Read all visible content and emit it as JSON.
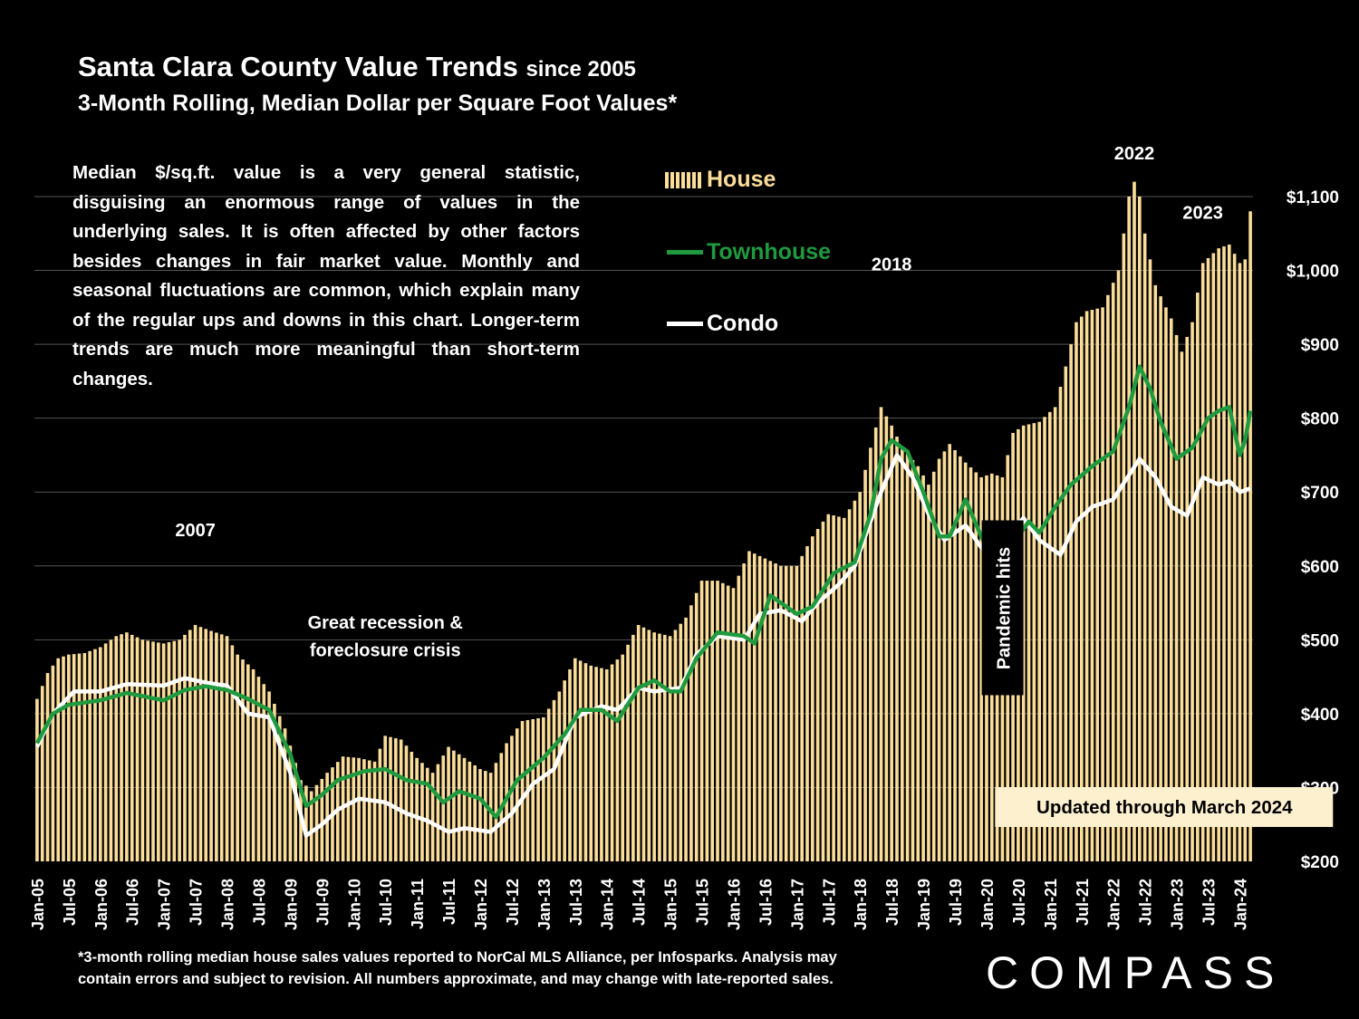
{
  "header": {
    "title": "Santa Clara County Value Trends",
    "title_suffix": "since 2005",
    "subtitle": "3-Month Rolling, Median Dollar per Square Foot Values*"
  },
  "note": "Median $/sq.ft. value is a very general statistic, disguising an enormous range of values in the underlying sales. It is often affected by other factors besides changes in fair market value. Monthly and seasonal fluctuations are common, which explain many of the regular ups and downs in this chart. Longer-term trends are much more meaningful than short-term changes.",
  "footnote": {
    "line1": "*3-month rolling median house sales values reported to NorCal MLS Alliance, per Infosparks. Analysis may",
    "line2": "contain errors and subject to revision. All numbers approximate, and may change with late-reported sales."
  },
  "logo": "COMPASS",
  "colors": {
    "house": "#fbdd9a",
    "townhouse": "#1f9a3f",
    "condo": "#ffffff",
    "background": "#000000",
    "grid": "#555555"
  },
  "chart_data": {
    "type": "bar",
    "ylim": [
      200,
      1150
    ],
    "y_ticks": [
      "$200",
      "$300",
      "$400",
      "$500",
      "$600",
      "$700",
      "$800",
      "$900",
      "$1,000",
      "$1,100"
    ],
    "y_tick_values": [
      200,
      300,
      400,
      500,
      600,
      700,
      800,
      900,
      1000,
      1100
    ],
    "x_start": "2005-01",
    "x_end": "2024-03",
    "x_ticks": [
      "Jan-05",
      "Jul-05",
      "Jan-06",
      "Jul-06",
      "Jan-07",
      "Jul-07",
      "Jan-08",
      "Jul-08",
      "Jan-09",
      "Jul-09",
      "Jan-10",
      "Jul-10",
      "Jan-11",
      "Jul-11",
      "Jan-12",
      "Jul-12",
      "Jan-13",
      "Jul-13",
      "Jan-14",
      "Jul-14",
      "Jan-15",
      "Jul-15",
      "Jan-16",
      "Jul-16",
      "Jan-17",
      "Jul-17",
      "Jan-18",
      "Jul-18",
      "Jan-19",
      "Jul-19",
      "Jan-20",
      "Jul-20",
      "Jan-21",
      "Jul-21",
      "Jan-22",
      "Jul-22",
      "Jan-23",
      "Jul-23",
      "Jan-24"
    ],
    "grid": true,
    "series": [
      {
        "name": "House",
        "kind": "bar",
        "anchors": [
          [
            "2005-01",
            420
          ],
          [
            "2005-03",
            455
          ],
          [
            "2005-05",
            475
          ],
          [
            "2005-07",
            480
          ],
          [
            "2005-10",
            482
          ],
          [
            "2006-01",
            490
          ],
          [
            "2006-04",
            505
          ],
          [
            "2006-06",
            510
          ],
          [
            "2006-09",
            500
          ],
          [
            "2007-01",
            495
          ],
          [
            "2007-04",
            500
          ],
          [
            "2007-07",
            520
          ],
          [
            "2007-10",
            512
          ],
          [
            "2008-01",
            505
          ],
          [
            "2008-03",
            480
          ],
          [
            "2008-06",
            460
          ],
          [
            "2008-09",
            430
          ],
          [
            "2008-12",
            380
          ],
          [
            "2009-03",
            310
          ],
          [
            "2009-05",
            295
          ],
          [
            "2009-08",
            320
          ],
          [
            "2009-11",
            342
          ],
          [
            "2010-02",
            340
          ],
          [
            "2010-05",
            335
          ],
          [
            "2010-07",
            370
          ],
          [
            "2010-10",
            365
          ],
          [
            "2011-01",
            340
          ],
          [
            "2011-04",
            320
          ],
          [
            "2011-07",
            355
          ],
          [
            "2011-10",
            340
          ],
          [
            "2012-01",
            325
          ],
          [
            "2012-03",
            320
          ],
          [
            "2012-06",
            360
          ],
          [
            "2012-09",
            390
          ],
          [
            "2013-01",
            395
          ],
          [
            "2013-04",
            430
          ],
          [
            "2013-07",
            475
          ],
          [
            "2013-10",
            465
          ],
          [
            "2014-01",
            460
          ],
          [
            "2014-04",
            480
          ],
          [
            "2014-07",
            520
          ],
          [
            "2014-10",
            510
          ],
          [
            "2015-01",
            505
          ],
          [
            "2015-04",
            530
          ],
          [
            "2015-07",
            580
          ],
          [
            "2015-10",
            580
          ],
          [
            "2016-01",
            570
          ],
          [
            "2016-04",
            620
          ],
          [
            "2016-07",
            610
          ],
          [
            "2016-10",
            600
          ],
          [
            "2017-01",
            600
          ],
          [
            "2017-04",
            640
          ],
          [
            "2017-07",
            670
          ],
          [
            "2017-10",
            665
          ],
          [
            "2018-01",
            700
          ],
          [
            "2018-03",
            760
          ],
          [
            "2018-05",
            815
          ],
          [
            "2018-07",
            790
          ],
          [
            "2018-09",
            760
          ],
          [
            "2018-12",
            735
          ],
          [
            "2019-02",
            710
          ],
          [
            "2019-04",
            745
          ],
          [
            "2019-06",
            765
          ],
          [
            "2019-09",
            740
          ],
          [
            "2019-12",
            720
          ],
          [
            "2020-02",
            725
          ],
          [
            "2020-04",
            720
          ],
          [
            "2020-06",
            780
          ],
          [
            "2020-08",
            790
          ],
          [
            "2020-11",
            795
          ],
          [
            "2021-02",
            815
          ],
          [
            "2021-04",
            870
          ],
          [
            "2021-06",
            930
          ],
          [
            "2021-08",
            945
          ],
          [
            "2021-11",
            950
          ],
          [
            "2022-02",
            1000
          ],
          [
            "2022-04",
            1100
          ],
          [
            "2022-05",
            1120
          ],
          [
            "2022-06",
            1100
          ],
          [
            "2022-07",
            1050
          ],
          [
            "2022-09",
            980
          ],
          [
            "2022-12",
            935
          ],
          [
            "2023-02",
            890
          ],
          [
            "2023-04",
            930
          ],
          [
            "2023-06",
            1010
          ],
          [
            "2023-09",
            1030
          ],
          [
            "2023-11",
            1035
          ],
          [
            "2024-01",
            1010
          ],
          [
            "2024-02",
            1015
          ],
          [
            "2024-03",
            1080
          ]
        ]
      },
      {
        "name": "Townhouse",
        "kind": "line",
        "anchors": [
          [
            "2005-01",
            360
          ],
          [
            "2005-04",
            400
          ],
          [
            "2005-07",
            412
          ],
          [
            "2006-01",
            418
          ],
          [
            "2006-06",
            428
          ],
          [
            "2007-01",
            418
          ],
          [
            "2007-05",
            432
          ],
          [
            "2007-09",
            437
          ],
          [
            "2008-01",
            432
          ],
          [
            "2008-05",
            420
          ],
          [
            "2008-09",
            405
          ],
          [
            "2009-01",
            345
          ],
          [
            "2009-04",
            275
          ],
          [
            "2009-07",
            290
          ],
          [
            "2009-10",
            310
          ],
          [
            "2010-03",
            322
          ],
          [
            "2010-07",
            325
          ],
          [
            "2010-11",
            310
          ],
          [
            "2011-03",
            305
          ],
          [
            "2011-06",
            280
          ],
          [
            "2011-09",
            295
          ],
          [
            "2012-01",
            285
          ],
          [
            "2012-04",
            260
          ],
          [
            "2012-08",
            310
          ],
          [
            "2013-01",
            340
          ],
          [
            "2013-05",
            372
          ],
          [
            "2013-08",
            405
          ],
          [
            "2013-12",
            405
          ],
          [
            "2014-03",
            390
          ],
          [
            "2014-07",
            435
          ],
          [
            "2014-10",
            445
          ],
          [
            "2015-01",
            430
          ],
          [
            "2015-03",
            430
          ],
          [
            "2015-06",
            475
          ],
          [
            "2015-10",
            510
          ],
          [
            "2016-03",
            505
          ],
          [
            "2016-05",
            495
          ],
          [
            "2016-08",
            560
          ],
          [
            "2016-11",
            545
          ],
          [
            "2017-01",
            535
          ],
          [
            "2017-04",
            545
          ],
          [
            "2017-08",
            590
          ],
          [
            "2017-12",
            605
          ],
          [
            "2018-03",
            670
          ],
          [
            "2018-05",
            745
          ],
          [
            "2018-07",
            770
          ],
          [
            "2018-10",
            755
          ],
          [
            "2019-01",
            700
          ],
          [
            "2019-04",
            640
          ],
          [
            "2019-06",
            640
          ],
          [
            "2019-09",
            690
          ],
          [
            "2019-12",
            640
          ],
          [
            "2020-03",
            600
          ],
          [
            "2020-06",
            630
          ],
          [
            "2020-09",
            660
          ],
          [
            "2020-11",
            645
          ],
          [
            "2021-02",
            680
          ],
          [
            "2021-05",
            710
          ],
          [
            "2021-09",
            735
          ],
          [
            "2022-01",
            755
          ],
          [
            "2022-04",
            815
          ],
          [
            "2022-06",
            870
          ],
          [
            "2022-08",
            840
          ],
          [
            "2022-10",
            795
          ],
          [
            "2023-01",
            745
          ],
          [
            "2023-04",
            760
          ],
          [
            "2023-07",
            800
          ],
          [
            "2023-09",
            810
          ],
          [
            "2023-11",
            815
          ],
          [
            "2024-01",
            750
          ],
          [
            "2024-02",
            770
          ],
          [
            "2024-03",
            810
          ]
        ]
      },
      {
        "name": "Condo",
        "kind": "line",
        "anchors": [
          [
            "2005-01",
            355
          ],
          [
            "2005-04",
            400
          ],
          [
            "2005-08",
            430
          ],
          [
            "2006-01",
            430
          ],
          [
            "2006-06",
            440
          ],
          [
            "2007-01",
            438
          ],
          [
            "2007-05",
            448
          ],
          [
            "2007-09",
            442
          ],
          [
            "2008-01",
            438
          ],
          [
            "2008-05",
            400
          ],
          [
            "2008-09",
            395
          ],
          [
            "2009-01",
            320
          ],
          [
            "2009-04",
            235
          ],
          [
            "2009-07",
            250
          ],
          [
            "2009-10",
            270
          ],
          [
            "2010-02",
            285
          ],
          [
            "2010-07",
            280
          ],
          [
            "2010-11",
            265
          ],
          [
            "2011-03",
            255
          ],
          [
            "2011-07",
            240
          ],
          [
            "2011-10",
            245
          ],
          [
            "2012-03",
            240
          ],
          [
            "2012-07",
            265
          ],
          [
            "2012-11",
            305
          ],
          [
            "2013-03",
            325
          ],
          [
            "2013-07",
            395
          ],
          [
            "2013-12",
            410
          ],
          [
            "2014-03",
            405
          ],
          [
            "2014-07",
            435
          ],
          [
            "2014-10",
            430
          ],
          [
            "2015-03",
            435
          ],
          [
            "2015-06",
            480
          ],
          [
            "2015-10",
            505
          ],
          [
            "2016-03",
            500
          ],
          [
            "2016-06",
            535
          ],
          [
            "2016-10",
            540
          ],
          [
            "2017-02",
            525
          ],
          [
            "2017-05",
            550
          ],
          [
            "2017-09",
            575
          ],
          [
            "2017-12",
            600
          ],
          [
            "2018-03",
            660
          ],
          [
            "2018-05",
            700
          ],
          [
            "2018-08",
            750
          ],
          [
            "2018-11",
            720
          ],
          [
            "2019-02",
            670
          ],
          [
            "2019-05",
            635
          ],
          [
            "2019-09",
            655
          ],
          [
            "2019-12",
            625
          ],
          [
            "2020-04",
            630
          ],
          [
            "2020-08",
            665
          ],
          [
            "2020-11",
            635
          ],
          [
            "2021-03",
            615
          ],
          [
            "2021-06",
            660
          ],
          [
            "2021-09",
            680
          ],
          [
            "2022-01",
            690
          ],
          [
            "2022-06",
            745
          ],
          [
            "2022-09",
            720
          ],
          [
            "2022-12",
            680
          ],
          [
            "2023-03",
            668
          ],
          [
            "2023-06",
            720
          ],
          [
            "2023-09",
            710
          ],
          [
            "2023-11",
            715
          ],
          [
            "2024-01",
            700
          ],
          [
            "2024-03",
            705
          ]
        ]
      }
    ],
    "annotations": [
      {
        "text": "2007",
        "x": "2007-07",
        "y": 640
      },
      {
        "text": "2018",
        "x": "2018-07",
        "y": 1000
      },
      {
        "text": "2022",
        "x": "2022-05",
        "y": 1150
      },
      {
        "text": "2023",
        "x": "2023-06",
        "y": 1070
      },
      {
        "text": "Great recession &",
        "x": "2010-07",
        "y": 515
      },
      {
        "text": "foreclosure crisis",
        "x": "2010-07",
        "y": 478
      },
      {
        "text": "Pandemic hits",
        "x": "2020-03",
        "y": 490,
        "rotated": true
      },
      {
        "text": "Updated through March 2024",
        "x": "2022-09",
        "y": 265,
        "boxed": true
      }
    ]
  }
}
